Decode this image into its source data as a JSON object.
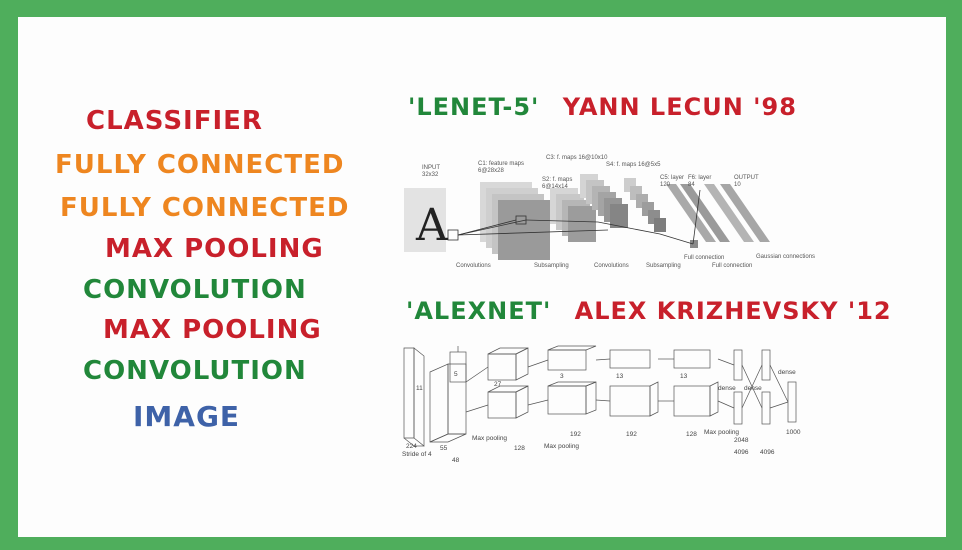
{
  "layers": {
    "classifier": "CLASSIFIER",
    "fully_connected_1": "FULLY CONNECTED",
    "fully_connected_2": "FULLY CONNECTED",
    "max_pooling_1": "MAX POOLING",
    "convolution_1": "CONVOLUTION",
    "max_pooling_2": "MAX POOLING",
    "convolution_2": "CONVOLUTION",
    "image": "IMAGE"
  },
  "lenet": {
    "name": "'LENET-5'",
    "author": "YANN LECUN '98",
    "input_label": "INPUT",
    "input_size": "32x32",
    "c1_label": "C1: feature maps",
    "c1_size": "6@28x28",
    "s2_label": "S2: f. maps",
    "s2_size": "6@14x14",
    "c3_label": "C3: f. maps 16@10x10",
    "s4_label": "S4: f. maps 16@5x5",
    "c5_label": "C5: layer",
    "c5_size": "120",
    "f6_label": "F6: layer",
    "f6_size": "84",
    "output_label": "OUTPUT",
    "output_size": "10",
    "op_convolutions_1": "Convolutions",
    "op_subsampling_1": "Subsampling",
    "op_convolutions_2": "Convolutions",
    "op_subsampling_2": "Subsampling",
    "op_full_1": "Full connection",
    "op_full_2": "Full connection",
    "op_gaussian": "Gaussian connections",
    "input_glyph": "A"
  },
  "alexnet": {
    "name": "'ALEXNET'",
    "author": "ALEX KRIZHEVSKY '12",
    "labels": {
      "stride": "Stride of 4",
      "max_pooling_1": "Max pooling",
      "max_pooling_2": "Max pooling",
      "max_pooling_3": "Max pooling",
      "dense_1": "dense",
      "dense_2": "dense",
      "dense_3": "dense",
      "n_4096a": "4096",
      "n_4096b": "4096",
      "n_1000": "1000",
      "d_224": "224",
      "d_48": "48",
      "d_128a": "128",
      "d_128b": "128",
      "d_192a": "192",
      "d_192b": "192",
      "d_2048": "2048",
      "d_55": "55",
      "d_27": "27",
      "d_13a": "13",
      "d_13b": "13",
      "d_3": "3",
      "d_5": "5",
      "d_11": "11"
    }
  },
  "colors": {
    "background": "#4fae5c",
    "board": "#fdfdfd",
    "red": "#c8202b",
    "orange": "#ee8620",
    "green": "#21873a",
    "blue": "#3e62a8"
  }
}
